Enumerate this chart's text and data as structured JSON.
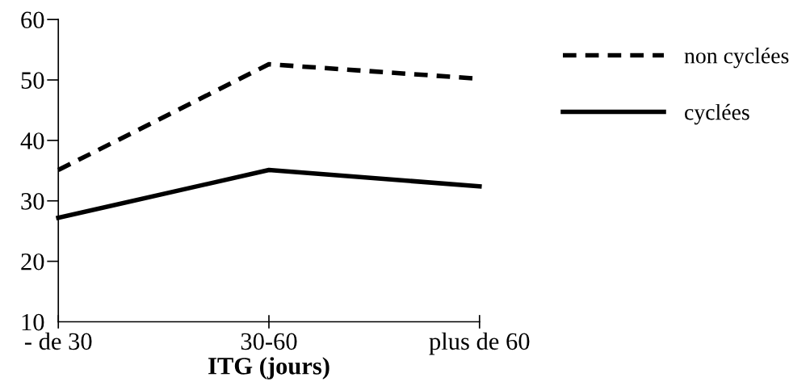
{
  "chart_data": {
    "type": "line",
    "xlabel": "ITG (jours)",
    "categories": [
      "- de 30",
      "30-60",
      "plus de 60"
    ],
    "ylim": [
      10,
      60
    ],
    "yticks": [
      10,
      20,
      30,
      40,
      50,
      60
    ],
    "legend": "right",
    "grid": false,
    "marker": "none",
    "series": [
      {
        "name": "non cyclées",
        "color": "#000000",
        "line_style": "dashed",
        "values": [
          35.1,
          52.6,
          50.2
        ]
      },
      {
        "name": "cyclées",
        "color": "#000000",
        "line_style": "solid",
        "values": [
          27.2,
          35.1,
          32.4
        ]
      }
    ]
  }
}
